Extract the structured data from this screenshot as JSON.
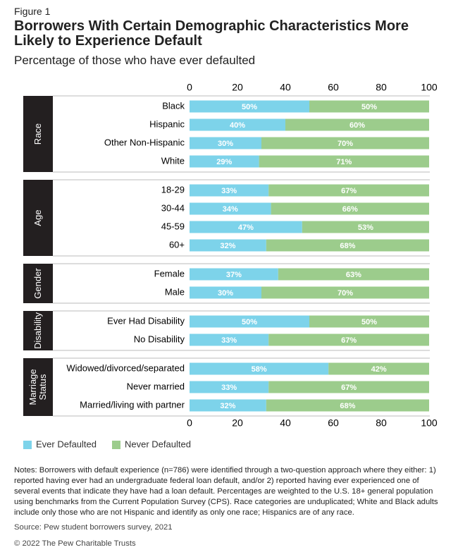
{
  "chart_data": {
    "type": "stacked_bar_horizontal",
    "figure_label": "Figure 1",
    "title": "Borrowers With Certain Demographic Characteristics  More Likely to Experience Default",
    "subtitle": "Percentage of those who have ever defaulted",
    "groups": [
      {
        "name": "Race",
        "categories": [
          "Black",
          "Hispanic",
          "Other Non-Hispanic",
          "White"
        ]
      },
      {
        "name": "Age",
        "categories": [
          "18-29",
          "30-44",
          "45-59",
          "60+"
        ]
      },
      {
        "name": "Gender",
        "categories": [
          "Female",
          "Male"
        ]
      },
      {
        "name": "Disability",
        "categories": [
          "Ever Had Disability",
          "No Disability"
        ]
      },
      {
        "name": "Marriage Status",
        "categories": [
          "Widowed/divorced/separated",
          "Never married",
          "Married/living with partner"
        ]
      }
    ],
    "series": [
      {
        "name": "Ever Defaulted",
        "color": "#7dd3ea",
        "values": [
          50,
          40,
          30,
          29,
          33,
          34,
          47,
          32,
          37,
          30,
          50,
          33,
          58,
          33,
          32
        ],
        "value_labels": [
          "50%",
          "40%",
          "30%",
          "29%",
          "33%",
          "34%",
          "47%",
          "32%",
          "37%",
          "30%",
          "50%",
          "33%",
          "58%",
          "33%",
          "32%"
        ]
      },
      {
        "name": "Never Defaulted",
        "color": "#9ccc8c",
        "values": [
          50,
          60,
          70,
          71,
          67,
          66,
          53,
          68,
          63,
          70,
          50,
          67,
          42,
          67,
          68
        ],
        "value_labels": [
          "50%",
          "60%",
          "70%",
          "71%",
          "67%",
          "66%",
          "53%",
          "68%",
          "63%",
          "70%",
          "50%",
          "67%",
          "42%",
          "67%",
          "68%"
        ]
      }
    ],
    "xlim": [
      0,
      100
    ],
    "xticks": [
      0,
      20,
      40,
      60,
      80,
      100
    ],
    "legend": "bottom-left",
    "notes": "Notes: Borrowers with default experience (n=786) were identified through a two-question approach where they either: 1) reported having ever had an undergraduate federal loan default, and/or 2) reported having ever experienced one of several events that indicate they have had a loan default. Percentages are weighted to the U.S. 18+ general population using benchmarks from the Current Population Survey (CPS). Race categories are unduplicated; White and Black adults include only those who are not Hispanic and identify as only one race; Hispanics are of any race.",
    "source": "Source: Pew student borrowers survey, 2021",
    "copyright": "© 2022 The Pew Charitable Trusts"
  }
}
